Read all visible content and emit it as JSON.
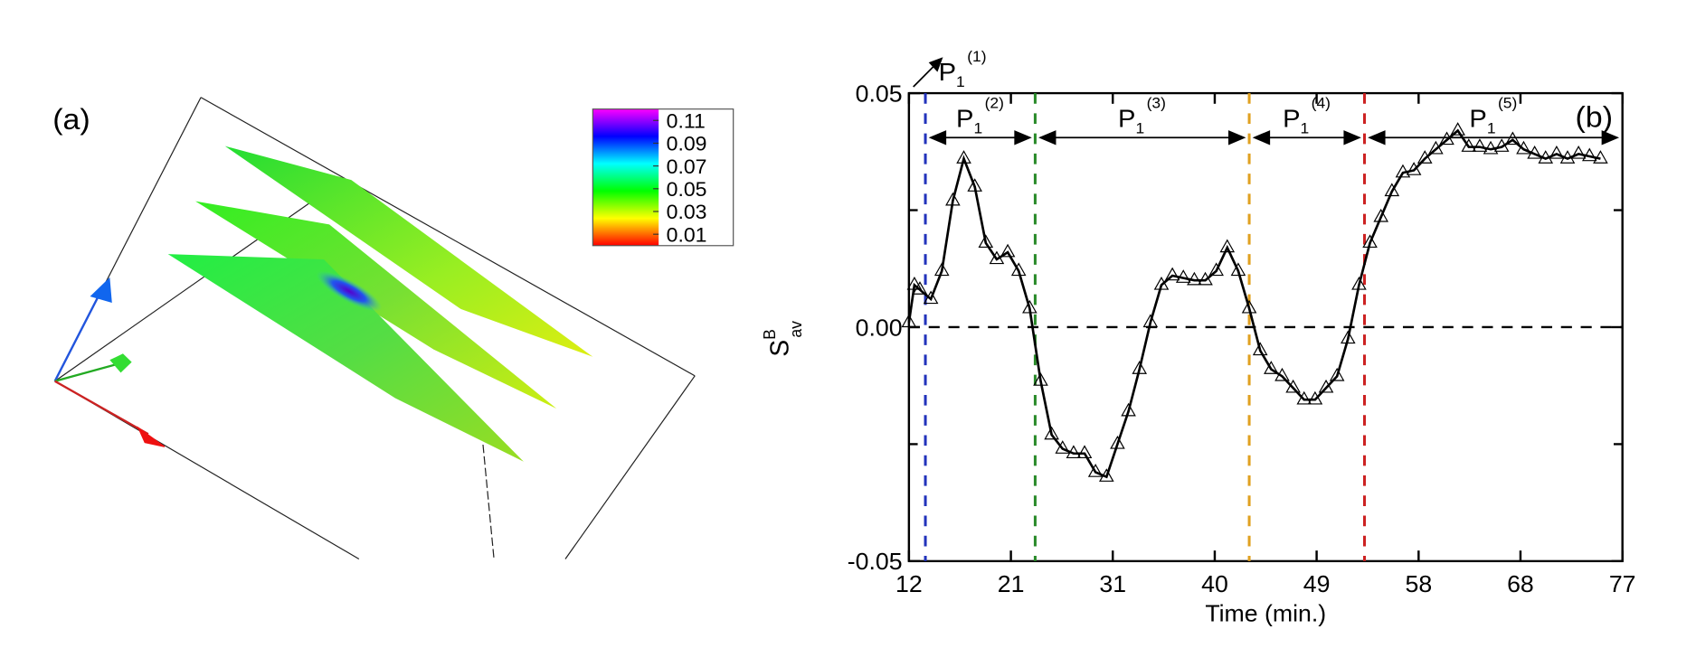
{
  "chart_data": [
    {
      "type": "surface3d",
      "panel_label": "(a)",
      "colorbar": {
        "lim": [
          0,
          0.12
        ],
        "ticks": [
          0.11,
          0.09,
          0.07,
          0.05,
          0.03,
          0.01
        ],
        "colors": [
          "#ff0000",
          "#ffff00",
          "#00ff00",
          "#00ffff",
          "#0000ff",
          "#ff00ff"
        ]
      }
    },
    {
      "type": "line",
      "panel_label": "(b)",
      "xlabel": "Time (min.)",
      "ylabel": {
        "base": "S",
        "sup": "B",
        "sub": "av"
      },
      "xlim": [
        12,
        77
      ],
      "xticks": [
        12,
        {
          "value": 21.29,
          "label": "21"
        },
        {
          "value": 30.57,
          "label": "31"
        },
        {
          "value": 39.86,
          "label": "40"
        },
        {
          "value": 49.14,
          "label": "49"
        },
        {
          "value": 58.43,
          "label": "58"
        },
        {
          "value": 67.71,
          "label": "68"
        },
        77
      ],
      "ylim": [
        -0.05,
        0.05
      ],
      "yticks": [
        -0.05,
        {
          "value": 0,
          "label": "0.00"
        },
        0.05
      ],
      "yminor": [
        -0.025,
        0.025
      ],
      "zero_line": true,
      "markers": [
        {
          "x": 13.5,
          "color": "#2233bb"
        },
        {
          "x": 23.5,
          "color": "#2a8a2a"
        },
        {
          "x": 43,
          "color": "#e0a020"
        },
        {
          "x": 53.5,
          "color": "#cc2222"
        }
      ],
      "periods": [
        {
          "base": "P",
          "sub": "1",
          "sup": "(1)",
          "start": 12,
          "end": 13.5
        },
        {
          "base": "P",
          "sub": "1",
          "sup": "(2)",
          "start": 13.5,
          "end": 23.5
        },
        {
          "base": "P",
          "sub": "1",
          "sup": "(3)",
          "start": 23.5,
          "end": 43
        },
        {
          "base": "P",
          "sub": "1",
          "sup": "(4)",
          "start": 43,
          "end": 53.5
        },
        {
          "base": "P",
          "sub": "1",
          "sup": "(5)",
          "start": 53.5,
          "end": 77
        }
      ],
      "series": [
        {
          "color": "#000000",
          "x": [
            12,
            12.5,
            13,
            14,
            15,
            16,
            17,
            18,
            19,
            20,
            21,
            22,
            23,
            24,
            25,
            26,
            27,
            28,
            29,
            30,
            31,
            32,
            33,
            34,
            35,
            36,
            37,
            38,
            39,
            40,
            41,
            42,
            43,
            44,
            45,
            46,
            47,
            48,
            49,
            50,
            51,
            52,
            53,
            54,
            55,
            56,
            57,
            58,
            59,
            60,
            61,
            62,
            63,
            64,
            65,
            66,
            67,
            68,
            69,
            70,
            71,
            72,
            73,
            74,
            75
          ],
          "values": [
            0.001,
            0.009,
            0.008,
            0.006,
            0.012,
            0.027,
            0.036,
            0.03,
            0.018,
            0.0145,
            0.016,
            0.012,
            0.004,
            -0.0115,
            -0.023,
            -0.026,
            -0.027,
            -0.027,
            -0.031,
            -0.032,
            -0.025,
            -0.018,
            -0.009,
            0.001,
            0.009,
            0.011,
            0.0105,
            0.01,
            0.01,
            0.012,
            0.017,
            0.012,
            0.004,
            -0.005,
            -0.009,
            -0.0105,
            -0.013,
            -0.0155,
            -0.0155,
            -0.013,
            -0.0105,
            -0.0025,
            0.009,
            0.018,
            0.0235,
            0.029,
            0.033,
            0.0335,
            0.036,
            0.038,
            0.04,
            0.042,
            0.0385,
            0.0385,
            0.038,
            0.0385,
            0.04,
            0.038,
            0.037,
            0.036,
            0.037,
            0.036,
            0.037,
            0.0365,
            0.036
          ]
        }
      ]
    }
  ]
}
